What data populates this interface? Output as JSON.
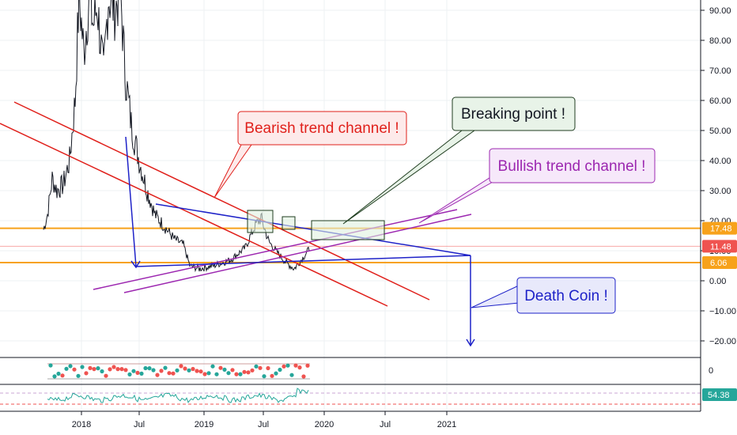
{
  "chart_data": {
    "type": "candlestick-annotated",
    "price_axis": {
      "ticks": [
        "90.00",
        "80.00",
        "70.00",
        "60.00",
        "50.00",
        "40.00",
        "30.00",
        "20.00",
        "10.00",
        "0.00",
        "−10.00",
        "−20.00"
      ],
      "tick_values": [
        90,
        80,
        70,
        60,
        50,
        40,
        30,
        20,
        10,
        0,
        -10,
        -20
      ],
      "ylim": [
        -23,
        94
      ]
    },
    "time_axis": {
      "ticks": [
        "2018",
        "Jul",
        "2019",
        "Jul",
        "2020",
        "Jul",
        "2021"
      ]
    },
    "price_labels": [
      {
        "text": "17.48",
        "value": 17.48,
        "color": "#f7a21b"
      },
      {
        "text": "11.48",
        "value": 11.48,
        "color": "#ef5350"
      },
      {
        "text": "6.06",
        "value": 6.06,
        "color": "#f7a21b"
      }
    ],
    "annotations": [
      {
        "text": "Bearish trend channel !",
        "color": "#e0201b"
      },
      {
        "text": "Breaking point !",
        "color": "#1f3d1f"
      },
      {
        "text": "Bullish trend channel !",
        "color": "#9c27b0"
      },
      {
        "text": "Death Coin !",
        "color": "#1e22c8"
      }
    ],
    "indicator_1": {
      "label": "0"
    },
    "indicator_2": {
      "label": "54.38"
    },
    "colors": {
      "price_line": "#131722",
      "bearish_channel": "#e0201b",
      "bullish_channel": "#9c27b0",
      "wedge": "#1e22c8",
      "support": "#f7a21b",
      "up_dot": "#26a69a",
      "down_dot": "#ef5350"
    }
  }
}
